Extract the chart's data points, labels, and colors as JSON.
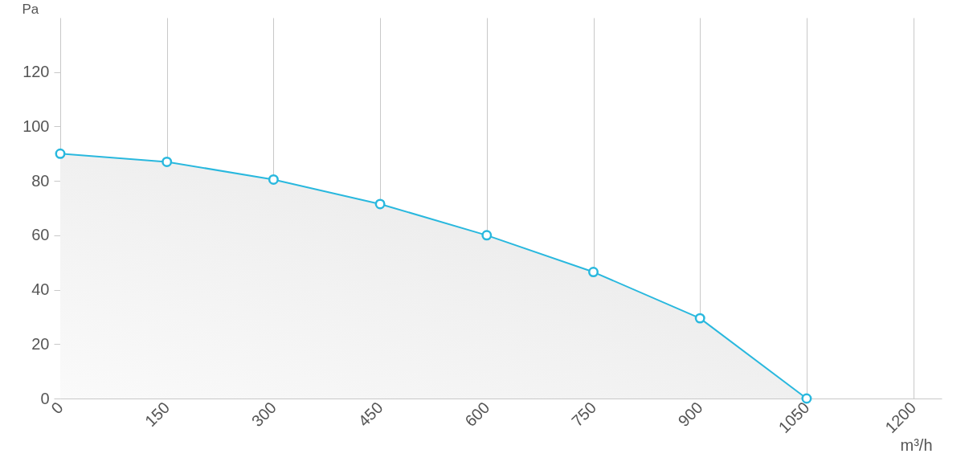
{
  "chart_data": {
    "type": "area",
    "xlabel": "m³/h",
    "ylabel": "Pa",
    "x": [
      0,
      150,
      300,
      450,
      600,
      750,
      900,
      1050
    ],
    "series": [
      {
        "color": "#29b8de",
        "values": [
          90,
          87,
          80.5,
          71.5,
          60,
          46.5,
          29.5,
          0
        ]
      }
    ],
    "xlim": [
      0,
      1240
    ],
    "ylim": [
      0,
      140
    ],
    "xticks": [
      0,
      150,
      300,
      450,
      600,
      750,
      900,
      1050,
      1200
    ],
    "yticks": [
      0,
      20,
      40,
      60,
      80,
      100,
      120
    ],
    "grid": "x",
    "marker": "circle"
  }
}
